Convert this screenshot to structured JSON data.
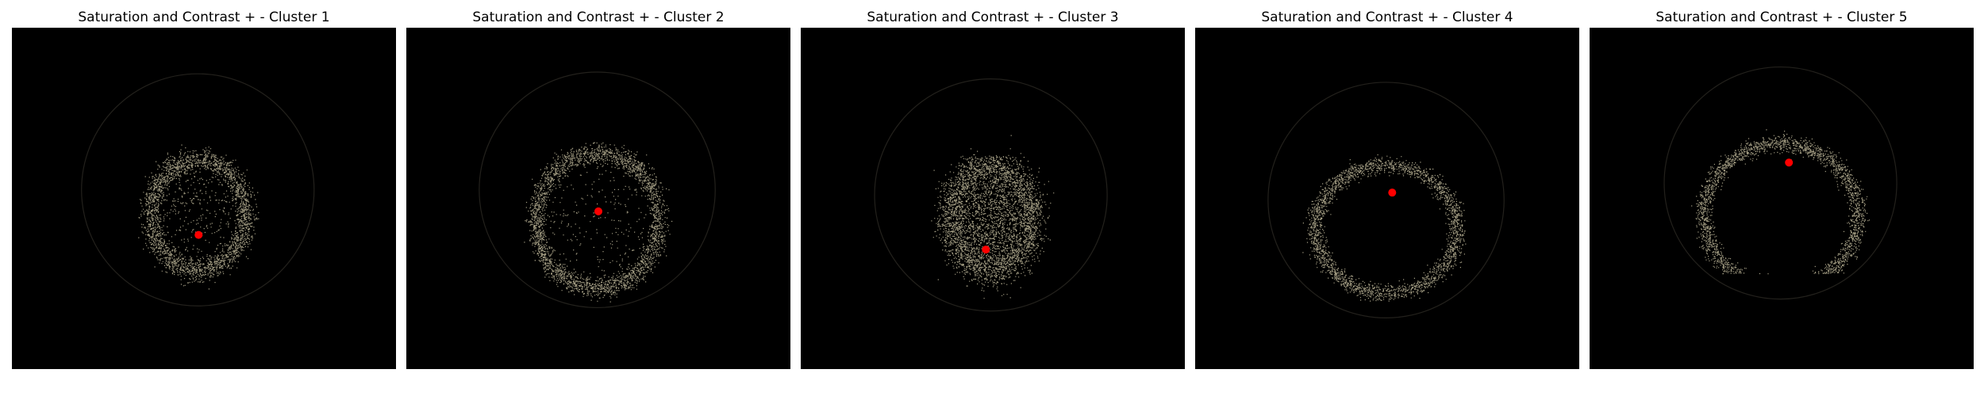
{
  "figure": {
    "background": "#ffffff",
    "image_background": "#000000",
    "pixel_color": "#d8d0ae",
    "marker_color": "#ff0000"
  },
  "panels": [
    {
      "title": "Saturation and Contrast + - Cluster 1",
      "pattern": "dome-hollow",
      "centroid": [
        0.486,
        0.607
      ]
    },
    {
      "title": "Saturation and Contrast + - Cluster 2",
      "pattern": "arch",
      "centroid": [
        0.5,
        0.538
      ]
    },
    {
      "title": "Saturation and Contrast + - Cluster 3",
      "pattern": "dome-filled",
      "centroid": [
        0.482,
        0.65
      ]
    },
    {
      "title": "Saturation and Contrast + - Cluster 4",
      "pattern": "arc",
      "centroid": [
        0.513,
        0.483
      ]
    },
    {
      "title": "Saturation and Contrast + - Cluster 5",
      "pattern": "arc-high",
      "centroid": [
        0.519,
        0.395
      ]
    }
  ]
}
